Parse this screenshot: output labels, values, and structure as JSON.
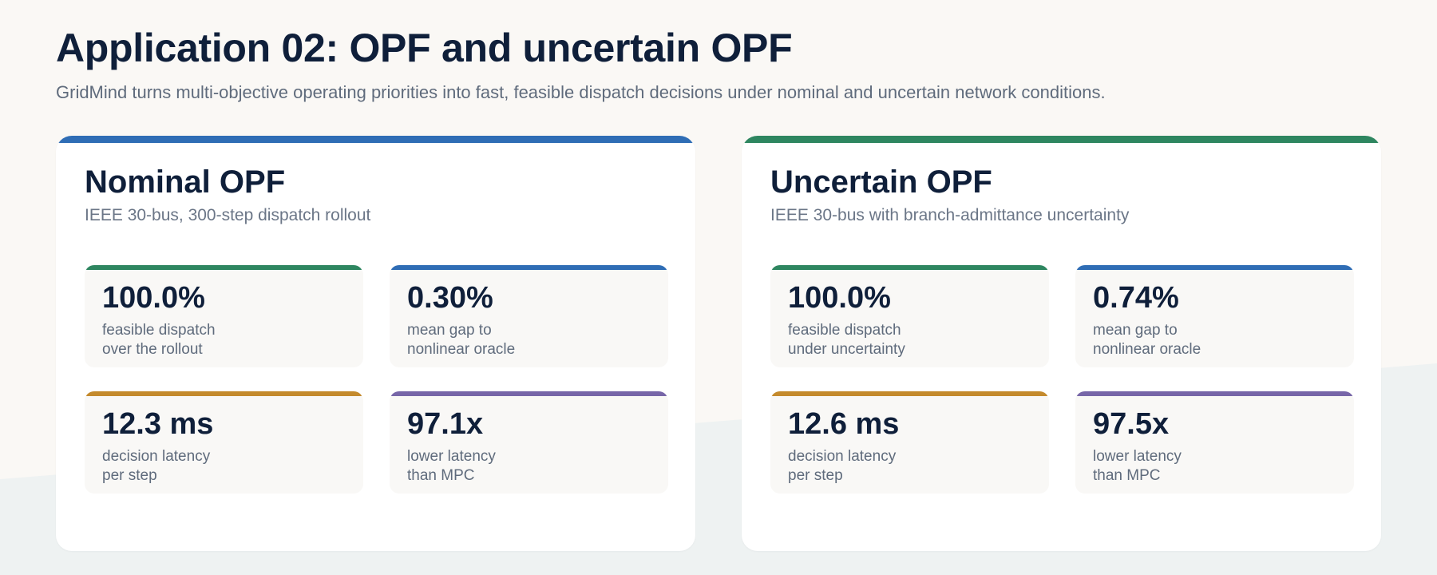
{
  "header": {
    "title": "Application 02: OPF and uncertain OPF",
    "subtitle": "GridMind turns multi-objective operating priorities into fast, feasible dispatch decisions under nominal and uncertain network conditions."
  },
  "colors": {
    "blue": "#2f6db5",
    "green": "#2e8660",
    "gold": "#c48a2c",
    "purple": "#7766a8",
    "background": "#faf8f5",
    "background_wave": "#eef2f2"
  },
  "panels": [
    {
      "title": "Nominal OPF",
      "subtitle": "IEEE 30-bus, 300-step dispatch rollout",
      "accent": "#2f6db5",
      "stats": [
        {
          "value": "100.0%",
          "label_line1": "feasible dispatch",
          "label_line2": "over the rollout",
          "accent": "#2e8660"
        },
        {
          "value": "0.30%",
          "label_line1": "mean gap to",
          "label_line2": "nonlinear oracle",
          "accent": "#2f6db5"
        },
        {
          "value": "12.3 ms",
          "label_line1": "decision latency",
          "label_line2": "per step",
          "accent": "#c48a2c"
        },
        {
          "value": "97.1x",
          "label_line1": "lower latency",
          "label_line2": "than MPC",
          "accent": "#7766a8"
        }
      ]
    },
    {
      "title": "Uncertain OPF",
      "subtitle": "IEEE 30-bus with branch-admittance uncertainty",
      "accent": "#2e8660",
      "stats": [
        {
          "value": "100.0%",
          "label_line1": "feasible dispatch",
          "label_line2": "under uncertainty",
          "accent": "#2e8660"
        },
        {
          "value": "0.74%",
          "label_line1": "mean gap to",
          "label_line2": "nonlinear oracle",
          "accent": "#2f6db5"
        },
        {
          "value": "12.6 ms",
          "label_line1": "decision latency",
          "label_line2": "per step",
          "accent": "#c48a2c"
        },
        {
          "value": "97.5x",
          "label_line1": "lower latency",
          "label_line2": "than MPC",
          "accent": "#7766a8"
        }
      ]
    }
  ]
}
